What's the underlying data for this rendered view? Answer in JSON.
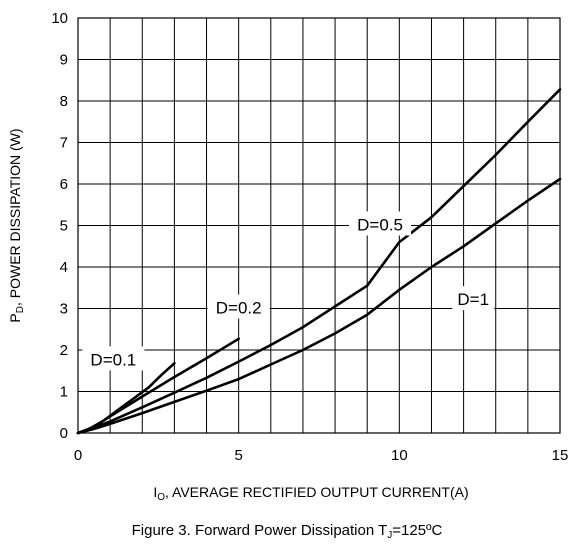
{
  "chart_data": {
    "type": "line",
    "xlim": [
      0,
      15
    ],
    "ylim": [
      0,
      10
    ],
    "x_ticks": [
      0,
      5,
      10,
      15
    ],
    "y_ticks": [
      0,
      1,
      2,
      3,
      4,
      5,
      6,
      7,
      8,
      9,
      10
    ],
    "grid": true,
    "xlabel": {
      "main": "I",
      "sub": "O",
      "rest": ", AVERAGE  RECTIFIED  OUTPUT  CURRENT(A)"
    },
    "ylabel": {
      "main": "P",
      "sub": "D",
      "rest": ", POWER  DISSIPATION  (W)"
    },
    "caption": {
      "main": "Figure 3.  Forward Power Dissipation T",
      "sub": "J",
      "rest": "=125ºC"
    },
    "series": [
      {
        "name": "D=0.1",
        "x": [
          0,
          0.3,
          0.8,
          1.5,
          2.2,
          2.6,
          3.0
        ],
        "y": [
          0,
          0.08,
          0.3,
          0.7,
          1.1,
          1.4,
          1.68
        ]
      },
      {
        "name": "D=0.2",
        "x": [
          0,
          0.5,
          1.0,
          2.0,
          3.0,
          4.0,
          5.0
        ],
        "y": [
          0,
          0.15,
          0.4,
          0.88,
          1.35,
          1.8,
          2.27
        ]
      },
      {
        "name": "D=0.5",
        "x": [
          0,
          0.5,
          1,
          2,
          3,
          4,
          5,
          6,
          7,
          8,
          9,
          10,
          11,
          12,
          13,
          14,
          15
        ],
        "y": [
          0,
          0.12,
          0.28,
          0.62,
          0.97,
          1.33,
          1.72,
          2.12,
          2.55,
          3.05,
          3.55,
          4.6,
          5.2,
          5.95,
          6.7,
          7.5,
          8.28
        ]
      },
      {
        "name": "D=1",
        "x": [
          0,
          0.5,
          1,
          2,
          3,
          4,
          5,
          6,
          7,
          8,
          9,
          10,
          11,
          12,
          13,
          14,
          15
        ],
        "y": [
          0,
          0.1,
          0.22,
          0.48,
          0.75,
          1.02,
          1.3,
          1.65,
          2.0,
          2.4,
          2.85,
          3.45,
          4.0,
          4.5,
          5.05,
          5.6,
          6.12
        ]
      }
    ],
    "labels": [
      {
        "text": "D=0.1",
        "x": 1.1,
        "y": 1.75
      },
      {
        "text": "D=0.2",
        "x": 5.0,
        "y": 3.0
      },
      {
        "text": "D=0.5",
        "x": 9.4,
        "y": 5.0
      },
      {
        "text": "D=1",
        "x": 12.3,
        "y": 3.2
      }
    ]
  }
}
